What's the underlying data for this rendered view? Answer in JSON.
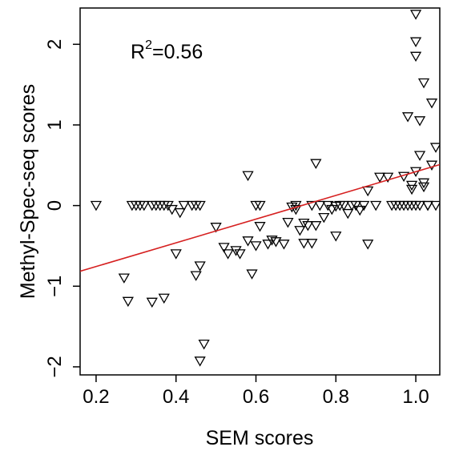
{
  "chart_data": {
    "type": "scatter",
    "xlabel": "SEM scores",
    "ylabel": "Methyl-Spec-seq scores",
    "xlim": [
      0.16,
      1.06
    ],
    "ylim": [
      -2.1,
      2.45
    ],
    "x_ticks": [
      0.2,
      0.4,
      0.6,
      0.8,
      1.0
    ],
    "x_tick_labels": [
      "0.2",
      "0.4",
      "0.6",
      "0.8",
      "1.0"
    ],
    "y_ticks": [
      -2,
      -1,
      0,
      1,
      2
    ],
    "y_tick_labels": [
      "−2",
      "−1",
      "0",
      "1",
      "2"
    ],
    "annotation": {
      "base": "R",
      "superscript": "2",
      "rest": "=0.56"
    },
    "marker": "down-triangle",
    "point_color": "#000000",
    "fit_line": {
      "color": "#d62020",
      "intercept": -1.05,
      "slope": 1.47
    },
    "grid": false,
    "legend": "none",
    "series": [
      {
        "points": [
          [
            0.2,
            0.0
          ],
          [
            0.27,
            -0.9
          ],
          [
            0.28,
            -1.19
          ],
          [
            0.29,
            0.0
          ],
          [
            0.3,
            0.0
          ],
          [
            0.31,
            0.0
          ],
          [
            0.32,
            0.0
          ],
          [
            0.34,
            0.0
          ],
          [
            0.34,
            -1.2
          ],
          [
            0.35,
            0.0
          ],
          [
            0.36,
            0.0
          ],
          [
            0.37,
            0.0
          ],
          [
            0.37,
            -1.15
          ],
          [
            0.38,
            0.0
          ],
          [
            0.39,
            -0.05
          ],
          [
            0.4,
            -0.6
          ],
          [
            0.41,
            -0.09
          ],
          [
            0.42,
            0.0
          ],
          [
            0.44,
            0.0
          ],
          [
            0.45,
            -0.87
          ],
          [
            0.45,
            0.0
          ],
          [
            0.46,
            -0.75
          ],
          [
            0.46,
            0.0
          ],
          [
            0.46,
            -1.93
          ],
          [
            0.47,
            -1.72
          ],
          [
            0.5,
            -0.27
          ],
          [
            0.52,
            -0.52
          ],
          [
            0.53,
            -0.6
          ],
          [
            0.55,
            -0.56
          ],
          [
            0.56,
            -0.6
          ],
          [
            0.58,
            0.37
          ],
          [
            0.58,
            -0.44
          ],
          [
            0.59,
            -0.85
          ],
          [
            0.6,
            -0.5
          ],
          [
            0.6,
            0.0
          ],
          [
            0.61,
            -0.26
          ],
          [
            0.61,
            0.0
          ],
          [
            0.63,
            -0.48
          ],
          [
            0.64,
            -0.43
          ],
          [
            0.65,
            -0.45
          ],
          [
            0.67,
            -0.48
          ],
          [
            0.68,
            -0.21
          ],
          [
            0.69,
            -0.02
          ],
          [
            0.7,
            0.0
          ],
          [
            0.7,
            -0.05
          ],
          [
            0.71,
            -0.31
          ],
          [
            0.72,
            -0.47
          ],
          [
            0.72,
            -0.22
          ],
          [
            0.73,
            -0.25
          ],
          [
            0.74,
            0.0
          ],
          [
            0.74,
            -0.47
          ],
          [
            0.75,
            -0.25
          ],
          [
            0.75,
            0.52
          ],
          [
            0.76,
            0.0
          ],
          [
            0.77,
            -0.15
          ],
          [
            0.78,
            0.0
          ],
          [
            0.79,
            -0.05
          ],
          [
            0.8,
            -0.01
          ],
          [
            0.8,
            -0.38
          ],
          [
            0.81,
            0.0
          ],
          [
            0.82,
            0.0
          ],
          [
            0.83,
            -0.1
          ],
          [
            0.84,
            0.0
          ],
          [
            0.85,
            0.0
          ],
          [
            0.86,
            -0.06
          ],
          [
            0.87,
            0.0
          ],
          [
            0.88,
            0.18
          ],
          [
            0.88,
            -0.48
          ],
          [
            0.9,
            0.0
          ],
          [
            0.91,
            0.35
          ],
          [
            0.93,
            0.35
          ],
          [
            0.94,
            0.0
          ],
          [
            0.95,
            0.0
          ],
          [
            0.96,
            0.0
          ],
          [
            0.97,
            0.0
          ],
          [
            0.97,
            0.36
          ],
          [
            0.98,
            0.0
          ],
          [
            0.98,
            1.1
          ],
          [
            0.99,
            0.0
          ],
          [
            0.99,
            0.2
          ],
          [
            0.99,
            0.25
          ],
          [
            1.0,
            2.37
          ],
          [
            1.0,
            2.03
          ],
          [
            1.0,
            1.85
          ],
          [
            1.0,
            0.0
          ],
          [
            1.0,
            0.42
          ],
          [
            1.01,
            1.05
          ],
          [
            1.01,
            0.0
          ],
          [
            1.01,
            0.62
          ],
          [
            1.02,
            1.52
          ],
          [
            1.02,
            0.28
          ],
          [
            1.02,
            0.23
          ],
          [
            1.03,
            0.0
          ],
          [
            1.03,
            0.0
          ],
          [
            1.04,
            1.27
          ],
          [
            1.04,
            0.5
          ],
          [
            1.05,
            0.72
          ],
          [
            1.05,
            0.0
          ]
        ]
      }
    ]
  }
}
